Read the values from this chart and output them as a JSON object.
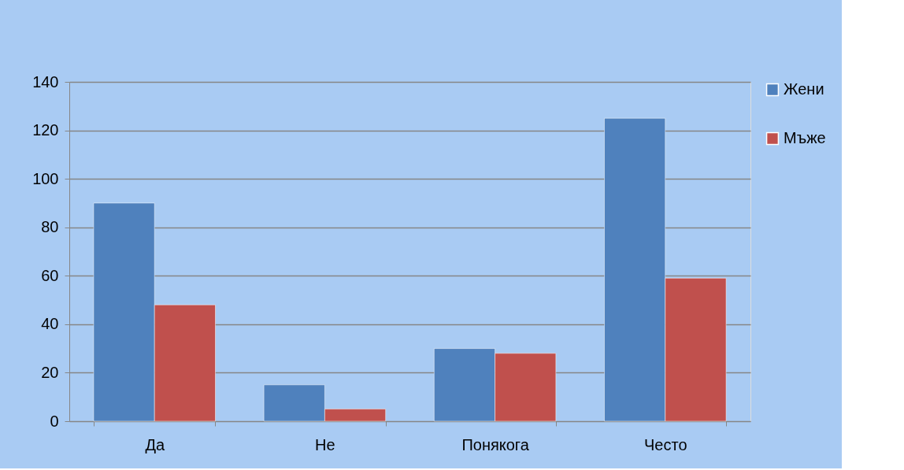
{
  "chart_data": {
    "type": "bar",
    "categories": [
      "Да",
      "Не",
      "Понякога",
      "Често"
    ],
    "series": [
      {
        "name": "Жени",
        "color": "#4f81bd",
        "values": [
          90,
          15,
          30,
          125
        ]
      },
      {
        "name": "Мъже",
        "color": "#c0504d",
        "values": [
          48,
          5,
          28,
          59
        ]
      }
    ],
    "ylim": [
      0,
      140
    ],
    "yticks": [
      0,
      20,
      40,
      60,
      80,
      100,
      120,
      140
    ],
    "grid": "y",
    "legend": "right"
  }
}
